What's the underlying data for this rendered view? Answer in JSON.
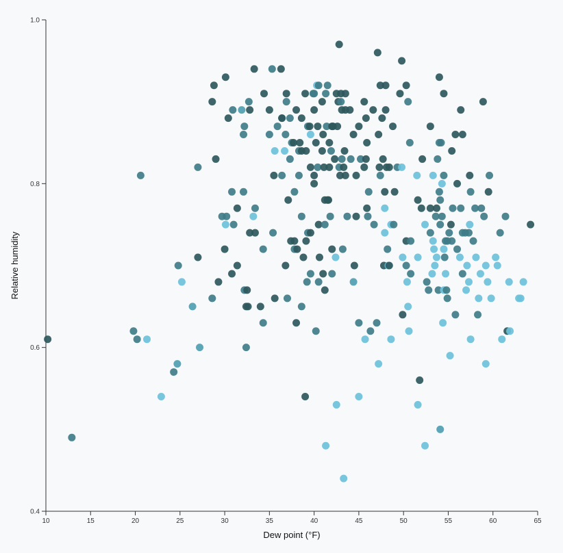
{
  "chart_data": {
    "type": "scatter",
    "x_label": "Dew point (°F)",
    "y_label": "Relative humidity",
    "xlim": [
      10,
      65
    ],
    "xticks": [
      10,
      15,
      20,
      25,
      30,
      35,
      40,
      45,
      50,
      55,
      60,
      65
    ],
    "ylim": [
      0.4,
      1.0
    ],
    "yticks": [
      0.4,
      0.6,
      0.8,
      {
        "value": 1.0,
        "label": "1.0"
      }
    ],
    "x": [
      10.2,
      12.9,
      20.6,
      19.8,
      20.2,
      21.3,
      22.9,
      24.3,
      24.7,
      24.8,
      25.2,
      26.4,
      27.0,
      27.0,
      27.2,
      28.6,
      28.8,
      29.0,
      29.3,
      28.6,
      30.1,
      30.4,
      30.9,
      29.7,
      30.1,
      30.2,
      30.0,
      30.8,
      31.0,
      30.8,
      31.4,
      31.4,
      31.9,
      32.1,
      32.2,
      32.7,
      32.8,
      32.1,
      32.8,
      33.3,
      33.4,
      33.2,
      33.4,
      32.2,
      32.4,
      32.6,
      32.5,
      32.4,
      34.3,
      34.4,
      34.0,
      34.3,
      35.0,
      35.0,
      35.3,
      35.6,
      35.5,
      35.4,
      35.6,
      35.9,
      36.3,
      36.4,
      36.4,
      36.4,
      36.7,
      36.8,
      36.9,
      36.9,
      36.8,
      37.0,
      37.1,
      37.3,
      37.3,
      37.4,
      37.5,
      37.7,
      37.8,
      37.8,
      37.8,
      38.0,
      38.0,
      38.1,
      38.3,
      38.3,
      38.4,
      38.6,
      38.6,
      38.6,
      38.6,
      38.8,
      39.0,
      39.1,
      39.0,
      39.2,
      39.1,
      39.3,
      39.5,
      39.6,
      39.3,
      39.6,
      39.6,
      39.6,
      39.9,
      40.0,
      40.0,
      40.0,
      40.0,
      40.2,
      40.2,
      40.3,
      40.4,
      40.4,
      40.5,
      40.5,
      40.5,
      40.6,
      40.9,
      40.9,
      41.0,
      41.0,
      41.1,
      41.2,
      41.2,
      41.2,
      41.3,
      41.3,
      41.4,
      41.5,
      41.5,
      41.6,
      41.7,
      41.7,
      41.8,
      41.9,
      42.0,
      42.0,
      42.1,
      42.0,
      42.3,
      42.4,
      42.5,
      42.5,
      42.6,
      42.7,
      42.8,
      42.8,
      42.9,
      43.0,
      43.0,
      43.1,
      43.1,
      43.2,
      43.3,
      43.4,
      43.3,
      43.5,
      43.5,
      43.5,
      43.7,
      44.0,
      44.1,
      44.4,
      44.4,
      44.5,
      44.7,
      44.7,
      45.0,
      45.0,
      45.0,
      45.2,
      45.6,
      45.7,
      45.6,
      45.8,
      45.8,
      45.9,
      45.9,
      46.0,
      46.1,
      46.3,
      46.6,
      46.7,
      47.0,
      47.2,
      47.1,
      47.2,
      47.3,
      47.4,
      47.4,
      47.6,
      47.7,
      47.8,
      47.9,
      48.0,
      48.0,
      47.9,
      47.9,
      48.1,
      48.2,
      48.3,
      48.4,
      48.4,
      48.6,
      48.6,
      48.8,
      48.9,
      49.0,
      49.3,
      49.6,
      49.8,
      49.8,
      49.9,
      49.9,
      50.3,
      50.3,
      50.3,
      50.4,
      50.5,
      50.5,
      50.6,
      50.7,
      50.8,
      50.8,
      51.5,
      51.6,
      51.6,
      51.6,
      51.8,
      52.0,
      52.1,
      52.4,
      52.4,
      52.6,
      52.8,
      53.0,
      53.0,
      53.0,
      53.2,
      53.3,
      53.3,
      53.4,
      53.5,
      53.6,
      53.7,
      53.7,
      53.8,
      53.9,
      54.0,
      54.0,
      54.0,
      54.1,
      54.1,
      54.1,
      54.2,
      54.3,
      54.3,
      54.4,
      54.5,
      54.5,
      54.5,
      54.5,
      54.6,
      54.7,
      54.7,
      54.8,
      54.9,
      54.9,
      55.1,
      55.2,
      55.3,
      55.4,
      55.4,
      55.5,
      55.8,
      55.8,
      56.0,
      56.0,
      56.3,
      56.4,
      56.4,
      56.6,
      56.6,
      56.6,
      56.9,
      57.0,
      57.1,
      57.3,
      57.3,
      57.4,
      57.4,
      57.5,
      57.5,
      57.8,
      58.0,
      58.1,
      58.3,
      58.4,
      58.6,
      58.7,
      58.9,
      59.0,
      59.2,
      59.2,
      59.4,
      59.5,
      59.6,
      59.8,
      60.3,
      60.5,
      60.8,
      61.0,
      61.4,
      61.6,
      61.8,
      61.9,
      62.9,
      63.1,
      63.4,
      64.2
    ],
    "values": [
      0.61,
      0.49,
      0.81,
      0.62,
      0.61,
      0.61,
      0.54,
      0.57,
      0.58,
      0.7,
      0.68,
      0.65,
      0.82,
      0.71,
      0.6,
      0.9,
      0.92,
      0.83,
      0.68,
      0.66,
      0.93,
      0.88,
      0.89,
      0.76,
      0.75,
      0.76,
      0.72,
      0.79,
      0.75,
      0.69,
      0.7,
      0.77,
      0.89,
      0.86,
      0.87,
      0.9,
      0.89,
      0.79,
      0.74,
      0.94,
      0.74,
      0.76,
      0.77,
      0.67,
      0.65,
      0.65,
      0.67,
      0.6,
      0.72,
      0.91,
      0.65,
      0.63,
      0.89,
      0.86,
      0.94,
      0.84,
      0.81,
      0.74,
      0.66,
      0.87,
      0.94,
      0.88,
      0.81,
      0.88,
      0.84,
      0.86,
      0.91,
      0.9,
      0.7,
      0.66,
      0.78,
      0.88,
      0.83,
      0.73,
      0.85,
      0.85,
      0.79,
      0.73,
      0.72,
      0.89,
      0.63,
      0.72,
      0.81,
      0.84,
      0.85,
      0.84,
      0.88,
      0.76,
      0.65,
      0.71,
      0.54,
      0.84,
      0.91,
      0.68,
      0.73,
      0.87,
      0.87,
      0.86,
      0.74,
      0.69,
      0.74,
      0.82,
      0.91,
      0.8,
      0.89,
      0.81,
      0.91,
      0.85,
      0.62,
      0.92,
      0.82,
      0.87,
      0.92,
      0.68,
      0.75,
      0.71,
      0.84,
      0.9,
      0.86,
      0.69,
      0.82,
      0.75,
      0.78,
      0.67,
      0.91,
      0.48,
      0.87,
      0.92,
      0.78,
      0.78,
      0.85,
      0.82,
      0.76,
      0.84,
      0.87,
      0.69,
      0.87,
      0.72,
      0.83,
      0.71,
      0.91,
      0.53,
      0.87,
      0.9,
      0.82,
      0.97,
      0.81,
      0.91,
      0.9,
      0.89,
      0.83,
      0.72,
      0.82,
      0.84,
      0.44,
      0.91,
      0.89,
      0.81,
      0.76,
      0.89,
      0.83,
      0.86,
      0.68,
      0.7,
      0.81,
      0.76,
      0.87,
      0.63,
      0.54,
      0.83,
      0.9,
      0.61,
      0.82,
      0.88,
      0.83,
      0.85,
      0.77,
      0.76,
      0.79,
      0.62,
      0.89,
      0.75,
      0.63,
      0.58,
      0.96,
      0.86,
      0.82,
      0.92,
      0.81,
      0.88,
      0.83,
      0.7,
      0.79,
      0.92,
      0.89,
      0.77,
      0.74,
      0.82,
      0.72,
      0.7,
      0.7,
      0.82,
      0.61,
      0.75,
      0.87,
      0.75,
      0.79,
      0.82,
      0.91,
      0.95,
      0.82,
      0.64,
      0.71,
      0.73,
      0.92,
      0.7,
      0.68,
      0.9,
      0.65,
      0.62,
      0.85,
      0.69,
      0.73,
      0.81,
      0.53,
      0.71,
      0.78,
      0.56,
      0.77,
      0.83,
      0.48,
      0.75,
      0.68,
      0.67,
      0.87,
      0.77,
      0.74,
      0.69,
      0.81,
      0.73,
      0.72,
      0.7,
      0.76,
      0.77,
      0.71,
      0.83,
      0.67,
      0.93,
      0.85,
      0.79,
      0.78,
      0.5,
      0.75,
      0.85,
      0.8,
      0.76,
      0.63,
      0.91,
      0.72,
      0.67,
      0.81,
      0.71,
      0.69,
      0.73,
      0.67,
      0.66,
      0.73,
      0.74,
      0.59,
      0.75,
      0.84,
      0.73,
      0.77,
      0.64,
      0.86,
      0.8,
      0.72,
      0.71,
      0.89,
      0.77,
      0.86,
      0.74,
      0.69,
      0.74,
      0.67,
      0.7,
      0.68,
      0.74,
      0.75,
      0.81,
      0.79,
      0.61,
      0.73,
      0.77,
      0.71,
      0.64,
      0.66,
      0.69,
      0.77,
      0.9,
      0.76,
      0.58,
      0.7,
      0.68,
      0.79,
      0.81,
      0.66,
      0.71,
      0.7,
      0.74,
      0.61,
      0.76,
      0.62,
      0.68,
      0.62,
      0.66,
      0.66,
      0.68,
      0.75
    ],
    "colors": [
      "#2e585c",
      "#3f7c88",
      "#3f7c88",
      "#3f7c88",
      "#3f7c88",
      "#6dc1da",
      "#6dc1da",
      "#3f7c88",
      "#4f9eb2",
      "#3f7c88",
      "#6dc1da",
      "#4f9eb2",
      "#3f7c88",
      "#2e585c",
      "#4f9eb2",
      "#2e585c",
      "#2e585c",
      "#2e585c",
      "#2e585c",
      "#3f7c88",
      "#2e585c",
      "#2e585c",
      "#3f7c88",
      "#3f7c88",
      "#6dc1da",
      "#3f7c88",
      "#2e585c",
      "#3f7c88",
      "#3f7c88",
      "#2e585c",
      "#2e585c",
      "#2e585c",
      "#4f9eb2",
      "#3f7c88",
      "#3f7c88",
      "#3f7c88",
      "#2e585c",
      "#3f7c88",
      "#2e585c",
      "#2e585c",
      "#2e585c",
      "#6dc1da",
      "#3f7c88",
      "#3f7c88",
      "#2e585c",
      "#2e585c",
      "#2e585c",
      "#3f7c88",
      "#3f7c88",
      "#2e585c",
      "#2e585c",
      "#3f7c88",
      "#2e585c",
      "#3f7c88",
      "#3f7c88",
      "#6dc1da",
      "#2e585c",
      "#3f7c88",
      "#2e585c",
      "#3f7c88",
      "#2e585c",
      "#3f7c88",
      "#3f7c88",
      "#2e585c",
      "#6dc1da",
      "#3f7c88",
      "#2e585c",
      "#3f7c88",
      "#2e585c",
      "#3f7c88",
      "#2e585c",
      "#3f7c88",
      "#3f7c88",
      "#2e585c",
      "#3f7c88",
      "#2e585c",
      "#3f7c88",
      "#2e585c",
      "#3f7c88",
      "#2e585c",
      "#2e585c",
      "#2e585c",
      "#3f7c88",
      "#3f7c88",
      "#2e585c",
      "#2e585c",
      "#2e585c",
      "#3f7c88",
      "#3f7c88",
      "#2e585c",
      "#2e585c",
      "#2e585c",
      "#2e585c",
      "#3f7c88",
      "#2e585c",
      "#3f7c88",
      "#2e585c",
      "#6dc1da",
      "#3f7c88",
      "#3f7c88",
      "#2e585c",
      "#2e585c",
      "#3f7c88",
      "#2e585c",
      "#2e585c",
      "#2e585c",
      "#3f7c88",
      "#2e585c",
      "#3f7c88",
      "#6dc1da",
      "#3f7c88",
      "#2e585c",
      "#3f7c88",
      "#3f7c88",
      "#2e585c",
      "#2e585c",
      "#2e585c",
      "#2e585c",
      "#2e585c",
      "#2e585c",
      "#2e585c",
      "#3f7c88",
      "#2e585c",
      "#2e585c",
      "#3f7c88",
      "#6dc1da",
      "#3f7c88",
      "#3f7c88",
      "#2e585c",
      "#2e585c",
      "#2e585c",
      "#2e585c",
      "#3f7c88",
      "#3f7c88",
      "#2e585c",
      "#3f7c88",
      "#2e585c",
      "#2e585c",
      "#2e585c",
      "#6dc1da",
      "#2e585c",
      "#6dc1da",
      "#2e585c",
      "#2e585c",
      "#3f7c88",
      "#2e585c",
      "#2e585c",
      "#2e585c",
      "#3f7c88",
      "#2e585c",
      "#3f7c88",
      "#3f7c88",
      "#2e585c",
      "#2e585c",
      "#6dc1da",
      "#2e585c",
      "#2e585c",
      "#2e585c",
      "#3f7c88",
      "#2e585c",
      "#3f7c88",
      "#2e585c",
      "#4f9eb2",
      "#2e585c",
      "#2e585c",
      "#2e585c",
      "#2e585c",
      "#3f7c88",
      "#6dc1da",
      "#3f7c88",
      "#2e585c",
      "#6dc1da",
      "#2e585c",
      "#2e585c",
      "#2e585c",
      "#2e585c",
      "#2e585c",
      "#3f7c88",
      "#3f7c88",
      "#3f7c88",
      "#2e585c",
      "#3f7c88",
      "#3f7c88",
      "#6dc1da",
      "#2e585c",
      "#2e585c",
      "#2e585c",
      "#2e585c",
      "#3f7c88",
      "#2e585c",
      "#2e585c",
      "#2e585c",
      "#2e585c",
      "#2e585c",
      "#2e585c",
      "#6dc1da",
      "#6dc1da",
      "#2e585c",
      "#3f7c88",
      "#6dc1da",
      "#2e585c",
      "#2e585c",
      "#6dc1da",
      "#6dc1da",
      "#2e585c",
      "#3f7c88",
      "#2e585c",
      "#3f7c88",
      "#2e585c",
      "#2e585c",
      "#6dc1da",
      "#2e585c",
      "#6dc1da",
      "#2e585c",
      "#2e585c",
      "#3f7c88",
      "#6dc1da",
      "#3f7c88",
      "#6dc1da",
      "#6dc1da",
      "#3f7c88",
      "#3f7c88",
      "#3f7c88",
      "#6dc1da",
      "#6dc1da",
      "#6dc1da",
      "#2e585c",
      "#2e585c",
      "#2e585c",
      "#2e585c",
      "#6dc1da",
      "#6dc1da",
      "#3f7c88",
      "#3f7c88",
      "#2e585c",
      "#2e585c",
      "#3f7c88",
      "#6dc1da",
      "#6dc1da",
      "#6dc1da",
      "#6dc1da",
      "#6dc1da",
      "#3f7c88",
      "#2e585c",
      "#6dc1da",
      "#3f7c88",
      "#3f7c88",
      "#2e585c",
      "#3f7c88",
      "#3f7c88",
      "#3f7c88",
      "#4f9eb2",
      "#3f7c88",
      "#3f7c88",
      "#6dc1da",
      "#3f7c88",
      "#6dc1da",
      "#2e585c",
      "#6dc1da",
      "#6dc1da",
      "#3f7c88",
      "#3f7c88",
      "#6dc1da",
      "#3f7c88",
      "#3f7c88",
      "#3f7c88",
      "#3f7c88",
      "#3f7c88",
      "#6dc1da",
      "#2e585c",
      "#2e585c",
      "#3f7c88",
      "#3f7c88",
      "#3f7c88",
      "#2e585c",
      "#2e585c",
      "#3f7c88",
      "#6dc1da",
      "#2e585c",
      "#3f7c88",
      "#2e585c",
      "#3f7c88",
      "#3f7c88",
      "#3f7c88",
      "#6dc1da",
      "#6dc1da",
      "#6dc1da",
      "#3f7c88",
      "#6dc1da",
      "#2e585c",
      "#3f7c88",
      "#6dc1da",
      "#3f7c88",
      "#3f7c88",
      "#6dc1da",
      "#3f7c88",
      "#6dc1da",
      "#6dc1da",
      "#3f7c88",
      "#2e585c",
      "#3f7c88",
      "#6dc1da",
      "#6dc1da",
      "#6dc1da",
      "#2e585c",
      "#3f7c88",
      "#6dc1da",
      "#6dc1da",
      "#6dc1da",
      "#3f7c88",
      "#6dc1da",
      "#3f7c88",
      "#2e585c",
      "#6dc1da",
      "#6dc1da",
      "#6dc1da",
      "#6dc1da",
      "#6dc1da",
      "#2e585c"
    ]
  }
}
